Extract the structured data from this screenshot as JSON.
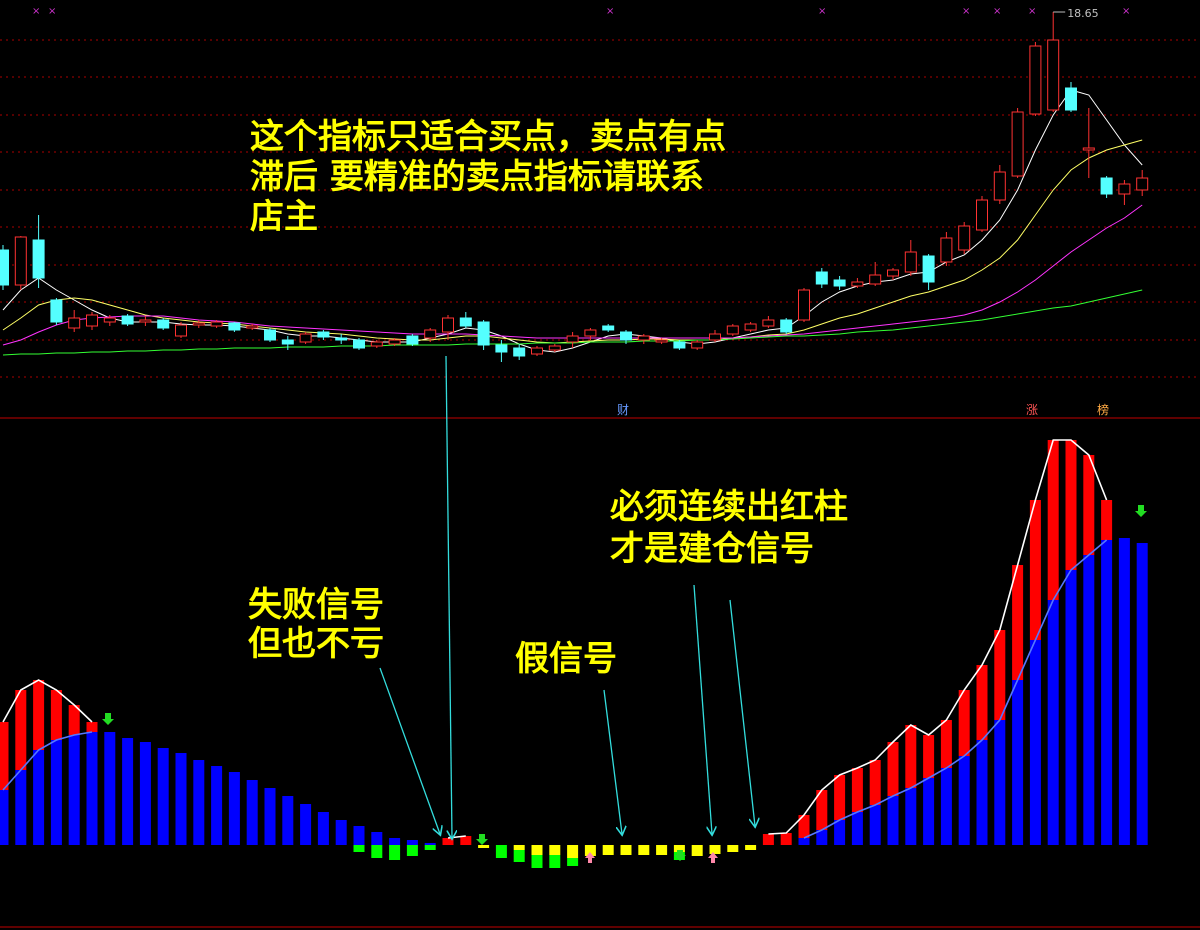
{
  "chart_data": [
    {
      "type": "candlestick",
      "ylim": [
        14.62,
        18.77
      ],
      "up_color": "#ff3232",
      "down_color": "#54ffff",
      "open": [
        16.27,
        15.92,
        16.37,
        15.77,
        15.49,
        15.51,
        15.55,
        15.61,
        15.55,
        15.57,
        15.41,
        15.52,
        15.51,
        15.54,
        15.49,
        15.47,
        15.37,
        15.35,
        15.45,
        15.39,
        15.37,
        15.31,
        15.33,
        15.41,
        15.39,
        15.45,
        15.59,
        15.55,
        15.32,
        15.29,
        15.23,
        15.27,
        15.35,
        15.41,
        15.51,
        15.45,
        15.37,
        15.35,
        15.35,
        15.29,
        15.37,
        15.43,
        15.47,
        15.51,
        15.57,
        15.57,
        16.05,
        15.97,
        15.91,
        15.93,
        16.01,
        16.05,
        16.21,
        16.15,
        16.27,
        16.47,
        16.77,
        17.01,
        17.63,
        17.67,
        17.89,
        17.27,
        16.99,
        16.83,
        16.87
      ],
      "high": [
        16.32,
        16.41,
        16.62,
        15.79,
        15.67,
        15.65,
        15.62,
        15.63,
        15.61,
        15.59,
        15.55,
        15.57,
        15.57,
        15.55,
        15.53,
        15.49,
        15.41,
        15.45,
        15.47,
        15.43,
        15.39,
        15.37,
        15.39,
        15.43,
        15.49,
        15.62,
        15.65,
        15.57,
        15.37,
        15.33,
        15.31,
        15.33,
        15.45,
        15.49,
        15.53,
        15.47,
        15.43,
        15.39,
        15.37,
        15.37,
        15.47,
        15.53,
        15.55,
        15.61,
        15.59,
        15.89,
        16.09,
        16.01,
        15.99,
        16.15,
        16.09,
        16.37,
        16.23,
        16.45,
        16.55,
        16.81,
        17.12,
        17.69,
        18.35,
        18.65,
        17.95,
        17.69,
        17.01,
        16.97,
        17.07
      ],
      "low": [
        15.87,
        15.87,
        15.89,
        15.52,
        15.45,
        15.47,
        15.51,
        15.51,
        15.51,
        15.47,
        15.39,
        15.49,
        15.49,
        15.45,
        15.47,
        15.35,
        15.27,
        15.33,
        15.37,
        15.33,
        15.27,
        15.29,
        15.31,
        15.31,
        15.35,
        15.37,
        15.49,
        15.27,
        15.15,
        15.17,
        15.21,
        15.25,
        15.29,
        15.37,
        15.45,
        15.33,
        15.33,
        15.33,
        15.27,
        15.27,
        15.35,
        15.41,
        15.45,
        15.49,
        15.43,
        15.55,
        15.89,
        15.87,
        15.89,
        15.91,
        15.97,
        16.01,
        15.87,
        16.11,
        16.23,
        16.45,
        16.73,
        16.99,
        17.61,
        17.65,
        17.65,
        16.99,
        16.79,
        16.72,
        16.81
      ],
      "close": [
        15.92,
        16.4,
        15.99,
        15.55,
        15.59,
        15.62,
        15.59,
        15.53,
        15.57,
        15.49,
        15.52,
        15.54,
        15.55,
        15.47,
        15.51,
        15.37,
        15.33,
        15.43,
        15.4,
        15.37,
        15.29,
        15.35,
        15.37,
        15.33,
        15.47,
        15.59,
        15.51,
        15.32,
        15.25,
        15.21,
        15.29,
        15.31,
        15.41,
        15.47,
        15.47,
        15.37,
        15.41,
        15.37,
        15.29,
        15.35,
        15.43,
        15.51,
        15.53,
        15.57,
        15.45,
        15.87,
        15.93,
        15.91,
        15.95,
        16.02,
        16.07,
        16.25,
        15.95,
        16.39,
        16.51,
        16.77,
        17.05,
        17.65,
        18.31,
        18.37,
        17.67,
        17.29,
        16.83,
        16.93,
        16.99
      ],
      "ma_lines": [
        {
          "color": "#ffffff",
          "values": [
            15.67,
            15.87,
            15.99,
            15.87,
            15.77,
            15.67,
            15.59,
            15.55,
            15.55,
            15.55,
            15.53,
            15.52,
            15.52,
            15.51,
            15.49,
            15.47,
            15.43,
            15.41,
            15.41,
            15.39,
            15.37,
            15.35,
            15.35,
            15.35,
            15.39,
            15.43,
            15.49,
            15.47,
            15.41,
            15.33,
            15.27,
            15.25,
            15.29,
            15.35,
            15.41,
            15.43,
            15.41,
            15.39,
            15.35,
            15.33,
            15.35,
            15.39,
            15.43,
            15.47,
            15.49,
            15.61,
            15.75,
            15.85,
            15.91,
            15.95,
            15.97,
            16.03,
            16.05,
            16.15,
            16.22,
            16.37,
            16.57,
            16.87,
            17.27,
            17.62,
            17.87,
            17.82,
            17.57,
            17.32,
            17.12
          ]
        },
        {
          "color": "#ffff66",
          "values": [
            15.47,
            15.59,
            15.72,
            15.77,
            15.79,
            15.77,
            15.72,
            15.67,
            15.62,
            15.59,
            15.57,
            15.55,
            15.54,
            15.53,
            15.51,
            15.49,
            15.47,
            15.45,
            15.44,
            15.43,
            15.41,
            15.39,
            15.38,
            15.37,
            15.37,
            15.39,
            15.41,
            15.41,
            15.39,
            15.37,
            15.35,
            15.34,
            15.35,
            15.36,
            15.37,
            15.37,
            15.38,
            15.38,
            15.37,
            15.37,
            15.37,
            15.39,
            15.4,
            15.42,
            15.43,
            15.47,
            15.53,
            15.59,
            15.63,
            15.69,
            15.75,
            15.81,
            15.85,
            15.91,
            15.97,
            16.07,
            16.19,
            16.37,
            16.62,
            16.87,
            17.07,
            17.19,
            17.27,
            17.32,
            17.37
          ]
        },
        {
          "color": "#ff33ff",
          "values": [
            15.32,
            15.37,
            15.45,
            15.52,
            15.57,
            15.59,
            15.6,
            15.61,
            15.61,
            15.61,
            15.59,
            15.57,
            15.56,
            15.55,
            15.53,
            15.51,
            15.5,
            15.49,
            15.48,
            15.47,
            15.46,
            15.45,
            15.44,
            15.43,
            15.43,
            15.43,
            15.43,
            15.42,
            15.41,
            15.4,
            15.39,
            15.39,
            15.39,
            15.39,
            15.39,
            15.39,
            15.39,
            15.39,
            15.39,
            15.39,
            15.39,
            15.39,
            15.4,
            15.41,
            15.42,
            15.43,
            15.45,
            15.47,
            15.49,
            15.51,
            15.53,
            15.55,
            15.57,
            15.59,
            15.62,
            15.67,
            15.75,
            15.85,
            15.97,
            16.11,
            16.25,
            16.37,
            16.49,
            16.59,
            16.72
          ]
        },
        {
          "color": "#33ff33",
          "values": [
            15.22,
            15.23,
            15.23,
            15.24,
            15.24,
            15.25,
            15.25,
            15.26,
            15.26,
            15.27,
            15.27,
            15.28,
            15.28,
            15.29,
            15.29,
            15.29,
            15.3,
            15.3,
            15.3,
            15.31,
            15.31,
            15.31,
            15.32,
            15.32,
            15.32,
            15.32,
            15.33,
            15.33,
            15.33,
            15.33,
            15.34,
            15.34,
            15.34,
            15.35,
            15.35,
            15.35,
            15.36,
            15.36,
            15.36,
            15.37,
            15.37,
            15.38,
            15.39,
            15.4,
            15.41,
            15.41,
            15.42,
            15.43,
            15.45,
            15.46,
            15.47,
            15.49,
            15.51,
            15.53,
            15.55,
            15.57,
            15.6,
            15.63,
            15.66,
            15.69,
            15.71,
            15.75,
            15.79,
            15.83,
            15.87
          ]
        }
      ],
      "annotations": [
        {
          "lines": [
            "这个指标只适合买点，卖点有点",
            "滞后 要精准的卖点指标请联系",
            "店主"
          ]
        }
      ],
      "markers": [
        "财",
        "涨",
        "榜"
      ]
    },
    {
      "type": "bar",
      "stacked": true,
      "ylim": [
        -21.25,
        106.25
      ],
      "series": [
        {
          "color": "#0000ff",
          "values": [
            13.75,
            18.75,
            23.75,
            26.25,
            27.5,
            28.25,
            28.25,
            26.75,
            25.75,
            24.25,
            23,
            21.25,
            19.75,
            18.25,
            16.25,
            14.25,
            12.25,
            10.25,
            8.25,
            6.25,
            4.75,
            3.25,
            1.75,
            1.25,
            0.5,
            0,
            0,
            0,
            0,
            0,
            0,
            0,
            0,
            0,
            0,
            0,
            0,
            0,
            0,
            0,
            0,
            0,
            0,
            0,
            0,
            1.75,
            3.75,
            6.25,
            8.25,
            10,
            12.25,
            14.25,
            16.75,
            19.25,
            22.25,
            26.25,
            31.25,
            41.25,
            51.25,
            61.25,
            68.75,
            72.5,
            76.25,
            76.75,
            75.5
          ]
        },
        {
          "color": "#ff0000",
          "values": [
            17,
            20,
            17.5,
            12.5,
            7.5,
            2.5,
            0,
            0,
            0,
            0,
            0,
            0,
            0,
            0,
            0,
            0,
            0,
            0,
            0,
            0,
            0,
            0,
            0,
            0,
            0,
            1.75,
            2.25,
            0,
            0,
            0,
            0,
            0,
            0,
            0,
            0,
            0,
            0,
            0,
            0,
            0,
            0,
            0,
            0,
            2.75,
            3,
            5.75,
            10,
            11.25,
            11,
            11.25,
            13.5,
            15.75,
            10.75,
            12,
            16.5,
            18.75,
            22.5,
            28.75,
            35,
            40,
            32.5,
            25,
            10,
            0,
            0
          ]
        },
        {
          "color": "#ffff00",
          "values": [
            0,
            0,
            0,
            0,
            0,
            0,
            0,
            0,
            0,
            0,
            0,
            0,
            0,
            0,
            0,
            0,
            0,
            0,
            0,
            0,
            0,
            0,
            0,
            0,
            0,
            0,
            0,
            -0.75,
            0,
            -1.25,
            -2.5,
            -2.5,
            -3.25,
            -2.75,
            -2.5,
            -2.5,
            -2.5,
            -2.5,
            -1.75,
            -2.75,
            -2.25,
            -1.75,
            -1.25,
            0,
            0,
            0,
            0,
            0,
            0,
            0,
            0,
            0,
            0,
            0,
            0,
            0,
            0,
            0,
            0,
            0,
            0,
            0,
            0,
            0,
            0
          ]
        },
        {
          "color": "#00ff00",
          "values": [
            0,
            0,
            0,
            0,
            0,
            0,
            0,
            0,
            0,
            0,
            0,
            0,
            0,
            0,
            0,
            0,
            0,
            0,
            0,
            0,
            -1.75,
            -3.25,
            -3.75,
            -2.75,
            -1.25,
            0,
            0,
            0,
            -3.25,
            -3,
            -3.25,
            -3.25,
            -2,
            0,
            0,
            0,
            0,
            0,
            -2,
            0,
            0,
            0,
            0,
            0,
            0,
            0,
            0,
            0,
            0,
            0,
            0,
            0,
            0,
            0,
            0,
            0,
            0,
            0,
            0,
            0,
            0,
            0,
            0,
            0,
            0
          ]
        }
      ],
      "annotations": [
        {
          "lines": [
            "失败信号",
            "但也不亏"
          ]
        },
        {
          "lines": [
            "假信号"
          ]
        },
        {
          "lines": [
            "必须连续出红柱",
            "才是建仓信号"
          ]
        }
      ]
    }
  ]
}
